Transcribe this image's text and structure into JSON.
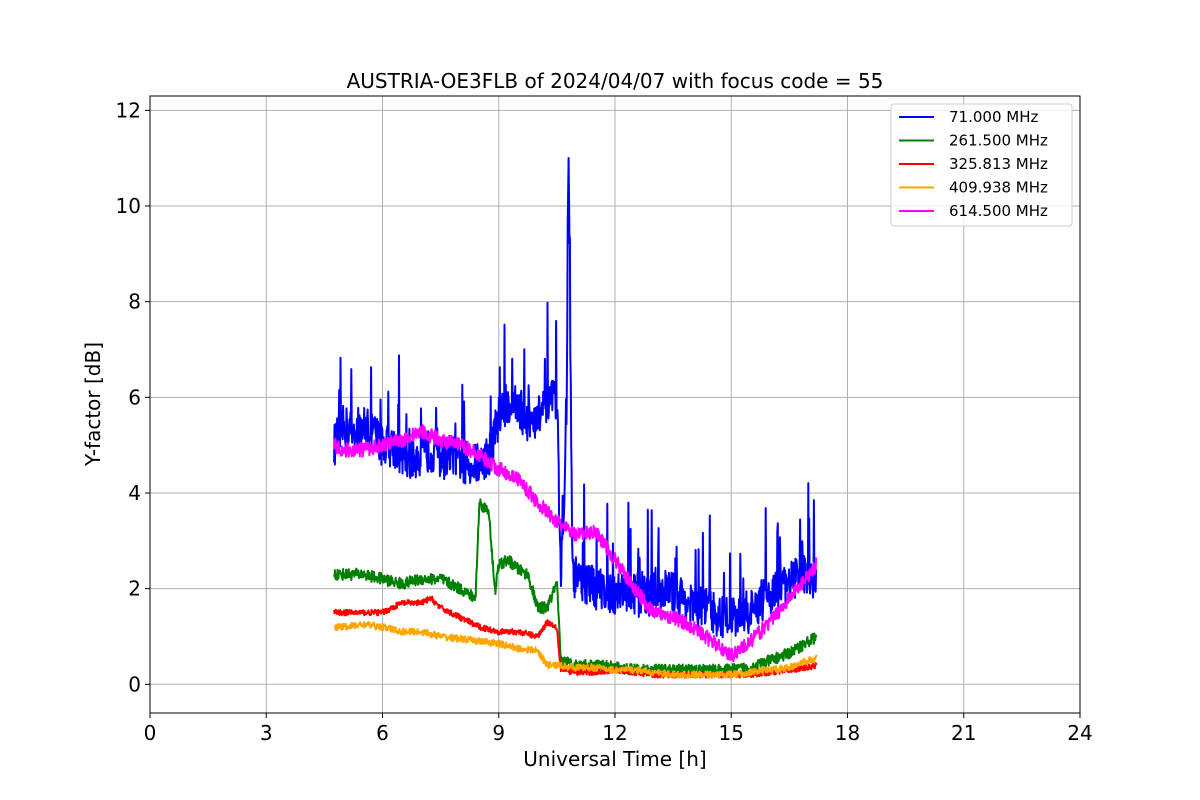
{
  "chart_data": {
    "type": "line",
    "title": "AUSTRIA-OE3FLB of 2024/04/07 with focus code = 55",
    "xlabel": "Universal Time [h]",
    "ylabel": "Y-factor [dB]",
    "xlim": [
      0,
      24
    ],
    "ylim": [
      -0.6,
      12.3
    ],
    "xticks": [
      0,
      3,
      6,
      9,
      12,
      15,
      18,
      21,
      24
    ],
    "xtick_labels": [
      "0",
      "3",
      "6",
      "9",
      "12",
      "15",
      "18",
      "21",
      "24"
    ],
    "yticks": [
      0,
      2,
      4,
      6,
      8,
      10,
      12
    ],
    "ytick_labels": [
      "0",
      "2",
      "4",
      "6",
      "8",
      "10",
      "12"
    ],
    "grid": true,
    "legend_position": "top-right",
    "series": [
      {
        "name": " 71.000 MHz",
        "color": "#0000ff",
        "noise": 0.45,
        "x": [
          4.75,
          5.0,
          5.25,
          5.5,
          5.75,
          6.0,
          6.25,
          6.5,
          6.75,
          7.0,
          7.25,
          7.5,
          7.75,
          8.0,
          8.25,
          8.5,
          8.75,
          9.0,
          9.25,
          9.5,
          9.75,
          10.0,
          10.25,
          10.5,
          10.6,
          10.75,
          10.8,
          10.9,
          11.0,
          11.25,
          11.5,
          11.75,
          12.0,
          12.25,
          12.5,
          12.75,
          13.0,
          13.25,
          13.5,
          13.75,
          14.0,
          14.25,
          14.5,
          14.75,
          15.0,
          15.25,
          15.5,
          15.75,
          16.0,
          16.25,
          16.5,
          16.75,
          17.0,
          17.2
        ],
        "y": [
          5.0,
          5.4,
          5.3,
          5.4,
          5.3,
          5.0,
          5.0,
          4.8,
          4.7,
          4.8,
          4.9,
          4.7,
          4.8,
          4.7,
          4.6,
          4.6,
          4.8,
          5.6,
          5.9,
          5.8,
          5.5,
          5.6,
          5.8,
          6.0,
          2.2,
          5.5,
          11.7,
          2.3,
          2.2,
          2.1,
          2.0,
          2.0,
          1.9,
          2.0,
          1.9,
          1.8,
          1.9,
          2.0,
          1.9,
          1.8,
          1.6,
          1.6,
          1.5,
          1.4,
          1.4,
          1.5,
          1.5,
          1.7,
          1.9,
          2.0,
          2.1,
          2.3,
          2.3,
          2.1
        ]
      },
      {
        "name": "261.500 MHz",
        "color": "#008000",
        "noise": 0.12,
        "x": [
          4.75,
          5.0,
          5.5,
          6.0,
          6.5,
          7.0,
          7.5,
          8.0,
          8.4,
          8.5,
          8.75,
          8.9,
          9.0,
          9.25,
          9.5,
          9.75,
          10.0,
          10.25,
          10.5,
          10.6,
          11.0,
          11.5,
          12.0,
          12.5,
          13.0,
          13.5,
          14.0,
          14.5,
          15.0,
          15.5,
          16.0,
          16.5,
          17.0,
          17.2
        ],
        "y": [
          2.3,
          2.3,
          2.3,
          2.2,
          2.1,
          2.2,
          2.2,
          2.0,
          1.8,
          3.8,
          3.6,
          1.9,
          2.5,
          2.6,
          2.4,
          2.3,
          1.6,
          1.6,
          2.1,
          0.5,
          0.4,
          0.4,
          0.35,
          0.3,
          0.3,
          0.3,
          0.3,
          0.3,
          0.3,
          0.35,
          0.5,
          0.65,
          0.9,
          1.0
        ]
      },
      {
        "name": "325.813 MHz",
        "color": "#ff0000",
        "noise": 0.06,
        "x": [
          4.75,
          5.0,
          5.5,
          6.0,
          6.5,
          7.0,
          7.25,
          7.5,
          8.0,
          8.5,
          9.0,
          9.5,
          10.0,
          10.25,
          10.5,
          10.6,
          11.0,
          11.5,
          12.0,
          12.5,
          13.0,
          13.5,
          14.0,
          14.5,
          15.0,
          15.5,
          16.0,
          16.5,
          17.0,
          17.2
        ],
        "y": [
          1.5,
          1.5,
          1.5,
          1.5,
          1.7,
          1.7,
          1.8,
          1.6,
          1.4,
          1.2,
          1.1,
          1.1,
          1.0,
          1.3,
          1.2,
          0.3,
          0.25,
          0.25,
          0.3,
          0.25,
          0.2,
          0.2,
          0.2,
          0.2,
          0.2,
          0.2,
          0.25,
          0.3,
          0.35,
          0.4
        ]
      },
      {
        "name": "409.938 MHz",
        "color": "#ffa500",
        "noise": 0.07,
        "x": [
          4.75,
          5.0,
          5.5,
          6.0,
          6.5,
          7.0,
          7.5,
          8.0,
          8.5,
          9.0,
          9.5,
          10.0,
          10.25,
          10.5,
          11.0,
          11.5,
          12.0,
          12.5,
          13.0,
          13.5,
          14.0,
          14.5,
          15.0,
          15.5,
          16.0,
          16.5,
          17.0,
          17.2
        ],
        "y": [
          1.2,
          1.2,
          1.25,
          1.2,
          1.1,
          1.1,
          1.0,
          0.95,
          0.9,
          0.85,
          0.75,
          0.7,
          0.4,
          0.4,
          0.35,
          0.35,
          0.3,
          0.3,
          0.25,
          0.2,
          0.2,
          0.2,
          0.2,
          0.25,
          0.3,
          0.35,
          0.5,
          0.55
        ]
      },
      {
        "name": "614.500 MHz",
        "color": "#ff00ff",
        "noise": 0.15,
        "x": [
          4.75,
          5.0,
          5.5,
          6.0,
          6.5,
          7.0,
          7.5,
          8.0,
          8.5,
          9.0,
          9.5,
          10.0,
          10.5,
          11.0,
          11.5,
          12.0,
          12.5,
          13.0,
          13.5,
          14.0,
          14.5,
          15.0,
          15.5,
          16.0,
          16.5,
          17.0,
          17.2
        ],
        "y": [
          5.0,
          4.9,
          4.9,
          5.0,
          5.1,
          5.3,
          5.1,
          5.0,
          4.8,
          4.5,
          4.3,
          3.8,
          3.4,
          3.1,
          3.2,
          2.6,
          2.0,
          1.5,
          1.4,
          1.2,
          0.9,
          0.6,
          0.9,
          1.3,
          1.8,
          2.3,
          2.5
        ]
      }
    ]
  }
}
